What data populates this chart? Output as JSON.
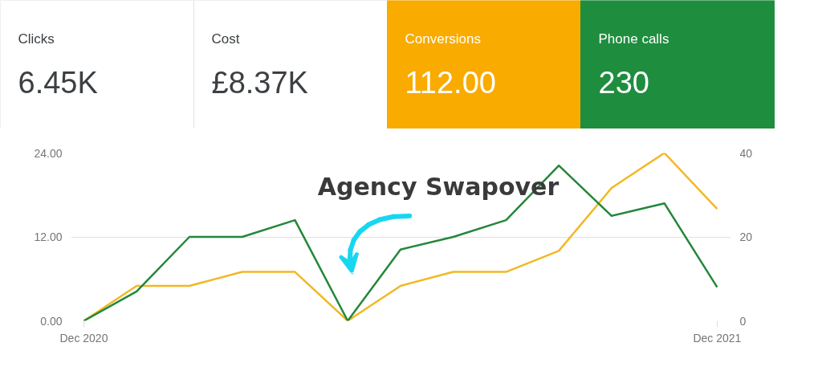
{
  "chart_data": [
    {
      "type": "other",
      "categories": [
        "Clicks",
        "Cost",
        "Conversions",
        "Phone calls"
      ],
      "value_labels": [
        "6.45K",
        "£8.37K",
        "112.00",
        "230"
      ],
      "colors": [
        "#ffffff",
        "#ffffff",
        "#f9ab00",
        "#1e8e3e"
      ]
    },
    {
      "type": "line",
      "categories": [
        "Dec 2020",
        null,
        null,
        null,
        null,
        null,
        null,
        null,
        null,
        null,
        null,
        null,
        "Dec 2021"
      ],
      "series": [
        {
          "color": "#f2b824",
          "values": [
            0,
            5,
            5,
            7,
            7,
            0,
            5,
            7,
            7,
            10,
            19,
            24,
            16
          ]
        },
        {
          "color": "#23873a",
          "axis": "y2",
          "values": [
            0,
            7,
            20,
            20,
            24,
            0,
            17,
            20,
            24,
            37,
            25,
            28,
            8
          ]
        }
      ],
      "ylim": [
        0,
        24
      ],
      "yticks": [
        {
          "value": 0,
          "label": "0.00"
        },
        {
          "value": 12,
          "label": "12.00"
        },
        {
          "value": 24,
          "label": "24.00"
        }
      ],
      "y2lim": [
        0,
        40
      ],
      "y2ticks": [
        0,
        20,
        40
      ],
      "grid": "y",
      "marker": "none",
      "line_style": "solid",
      "annotations": [
        "Agency Swapover"
      ]
    }
  ]
}
